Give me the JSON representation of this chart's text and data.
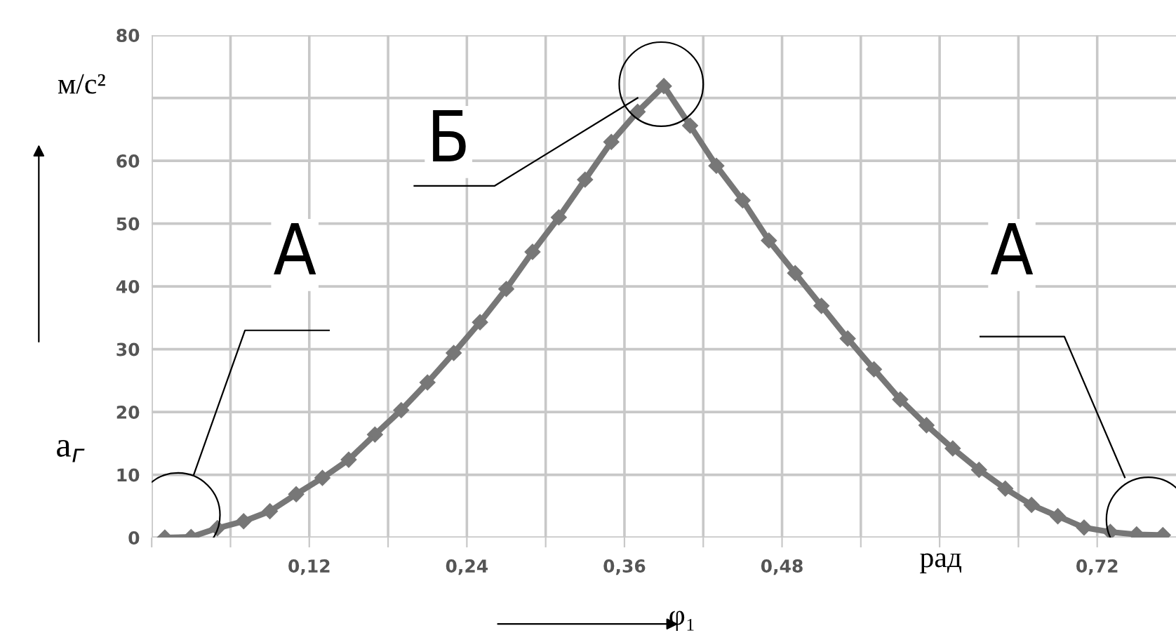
{
  "chart_data": {
    "type": "line",
    "x": [
      0.01,
      0.03,
      0.05,
      0.07,
      0.09,
      0.11,
      0.13,
      0.15,
      0.17,
      0.19,
      0.21,
      0.23,
      0.25,
      0.27,
      0.29,
      0.31,
      0.33,
      0.35,
      0.37,
      0.39,
      0.41,
      0.43,
      0.45,
      0.47,
      0.49,
      0.51,
      0.53,
      0.55,
      0.57,
      0.59,
      0.61,
      0.63,
      0.65,
      0.67,
      0.69,
      0.71,
      0.73,
      0.75,
      0.77
    ],
    "series": [
      {
        "color": "#777777",
        "values": [
          0,
          0.1,
          1.5,
          2.6,
          4.2,
          6.9,
          9.5,
          12.4,
          16.4,
          20.3,
          24.7,
          29.4,
          34.3,
          39.6,
          45.5,
          51.0,
          57.0,
          63.0,
          67.8,
          71.9,
          65.6,
          59.2,
          53.7,
          47.3,
          42.1,
          36.9,
          31.7,
          26.8,
          22.0,
          17.9,
          14.2,
          10.8,
          7.8,
          5.2,
          3.4,
          1.6,
          0.9,
          0.5,
          0.4
        ]
      }
    ],
    "marker": "diamond",
    "line_style": "solid",
    "grid": true,
    "xlim": [
      0,
      0.78
    ],
    "ylim": [
      0,
      80
    ],
    "xticks": [
      {
        "value": 0,
        "label": null
      },
      {
        "value": 0.06,
        "label": null
      },
      {
        "value": 0.12,
        "label": "0,12"
      },
      {
        "value": 0.18,
        "label": null
      },
      {
        "value": 0.24,
        "label": "0,24"
      },
      {
        "value": 0.3,
        "label": null
      },
      {
        "value": 0.36,
        "label": "0,36"
      },
      {
        "value": 0.42,
        "label": null
      },
      {
        "value": 0.48,
        "label": "0,48"
      },
      {
        "value": 0.54,
        "label": null
      },
      {
        "value": 0.6,
        "label": null
      },
      {
        "value": 0.66,
        "label": null
      },
      {
        "value": 0.72,
        "label": "0,72"
      }
    ],
    "yticks": [
      0,
      10,
      20,
      30,
      40,
      50,
      60,
      {
        "value": 70,
        "label": null
      },
      80
    ],
    "annotations": [
      "м/с²",
      "а$_{г}$",
      "рад",
      "φ₁",
      "А",
      "Б",
      "А"
    ]
  }
}
